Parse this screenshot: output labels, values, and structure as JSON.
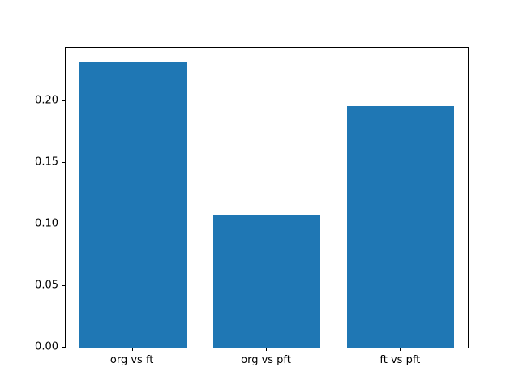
{
  "chart_data": {
    "type": "bar",
    "title": "",
    "xlabel": "",
    "ylabel": "",
    "categories": [
      "org vs ft",
      "org vs pft",
      "ft vs pft"
    ],
    "values": [
      0.232,
      0.108,
      0.196
    ],
    "yticks": [
      0.0,
      0.05,
      0.1,
      0.15,
      0.2
    ],
    "ytick_labels": [
      "0.00",
      "0.05",
      "0.10",
      "0.15",
      "0.20"
    ],
    "ylim": [
      0,
      0.2436
    ],
    "bar_color": "#1f77b4",
    "background_color": "#ffffff",
    "axis_color": "#000000",
    "grid": false,
    "legend": null,
    "bar_width_fraction": 0.8
  }
}
